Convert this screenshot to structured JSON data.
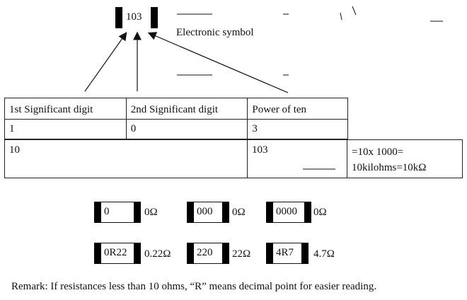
{
  "symbol_code": "103",
  "symbol_caption": "Electronic symbol",
  "table": {
    "headers": [
      "1st Significant digit",
      "2nd Significant digit",
      "Power of ten"
    ],
    "digits": [
      "1",
      "0",
      "3"
    ],
    "result_left": "10",
    "result_mid": "103",
    "result_right_line1": "=10x 1000=",
    "result_right_line2": "10kilohms=10kΩ"
  },
  "examples": [
    {
      "code": "0",
      "value": "0Ω"
    },
    {
      "code": "000",
      "value": "0Ω"
    },
    {
      "code": "0000",
      "value": "0Ω"
    },
    {
      "code": "0R22",
      "value": "0.22Ω"
    },
    {
      "code": "220",
      "value": "22Ω"
    },
    {
      "code": "4R7",
      "value": "4.7Ω"
    }
  ],
  "remark": "Remark: If resistances less than 10 ohms, “R” means decimal point for easier reading.",
  "colors": {
    "ink": "#111111",
    "cap": "#000000"
  }
}
